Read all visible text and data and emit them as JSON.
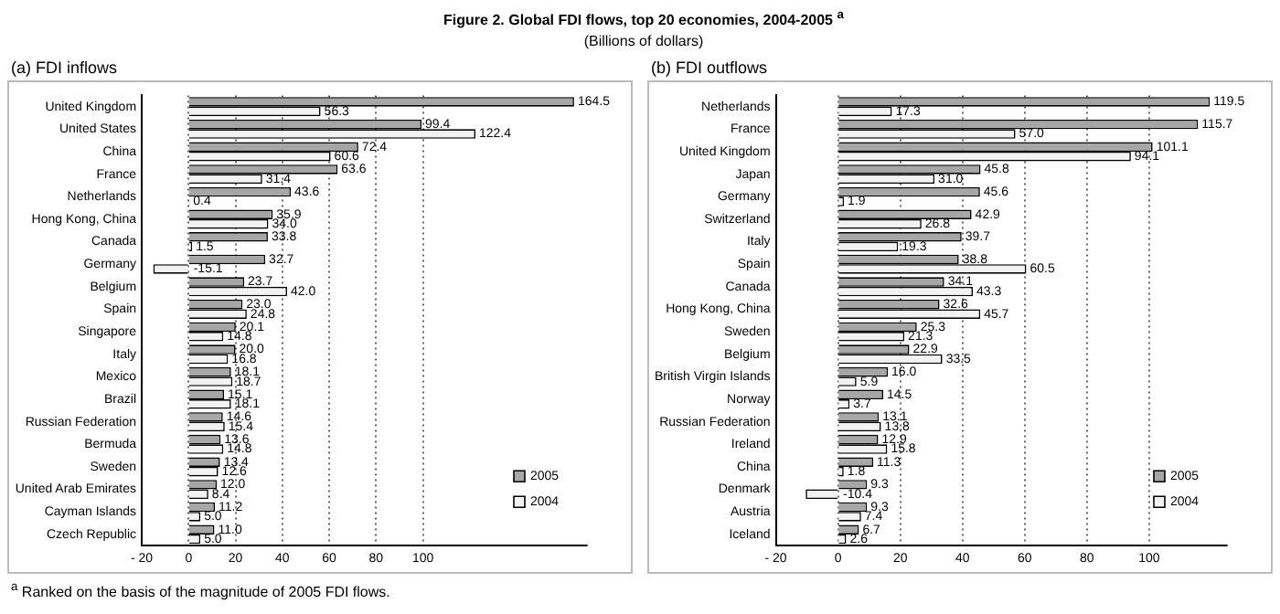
{
  "chart_data": [
    {
      "type": "bar",
      "orientation": "horizontal",
      "title": "(a) FDI inflows",
      "annotations": [
        "Figure 2.  Global FDI flows, top 20 economies, 2004-2005 $^{a}$",
        "(Billions of dollars)",
        "$^{a}$  Ranked on the basis of the magnitude of 2005 FDI flows."
      ],
      "categories": [
        "United Kingdom",
        "United States",
        "China",
        "France",
        "Netherlands",
        "Hong Kong, China",
        "Canada",
        "Germany",
        "Belgium",
        "Spain",
        "Singapore",
        "Italy",
        "Mexico",
        "Brazil",
        "Russian Federation",
        "Bermuda",
        "Sweden",
        "United Arab Emirates",
        "Cayman Islands",
        "Czech Republic"
      ],
      "series": [
        {
          "name": "2005",
          "color": "#a6a6a6",
          "values": [
            164.5,
            99.4,
            72.4,
            63.6,
            43.6,
            35.9,
            33.8,
            32.7,
            23.7,
            23.0,
            20.1,
            20.0,
            18.1,
            15.1,
            14.6,
            13.6,
            13.4,
            12.0,
            11.2,
            11.0
          ],
          "value_labels": [
            "164.5",
            "99.4",
            "72.4",
            "63.6",
            "43.6",
            "35.9",
            "33.8",
            "32.7",
            "23.7",
            "23.0",
            "20.1",
            "20.0",
            "18.1",
            "15.1",
            "14.6",
            "13.6",
            "13.4",
            "12.0",
            "11.2",
            "11.0"
          ]
        },
        {
          "name": "2004",
          "color": "#f2f2f2",
          "values": [
            56.3,
            122.4,
            60.6,
            31.4,
            0.4,
            34.0,
            1.5,
            -15.1,
            42.0,
            24.8,
            14.8,
            16.8,
            18.7,
            18.1,
            15.4,
            14.8,
            12.6,
            8.4,
            5.0,
            5.0
          ],
          "value_labels": [
            "56.3",
            "122.4",
            "60.6",
            "31.4",
            "0.4",
            "34.0",
            "1.5",
            "-15.1",
            "42.0",
            "24.8",
            "14.8",
            "16.8",
            "18.7",
            "18.1",
            "15.4",
            "14.8",
            "12.6",
            "8.4",
            "5.0",
            "5.0"
          ]
        }
      ],
      "xlim": [
        -20,
        170
      ],
      "xticks": [
        {
          "value": -20,
          "label": "- 20"
        },
        0,
        20,
        40,
        60,
        80,
        100
      ],
      "grid": "x",
      "legend": "bottom right"
    },
    {
      "type": "bar",
      "orientation": "horizontal",
      "title": "(b) FDI outflows",
      "categories": [
        "Netherlands",
        "France",
        "United Kingdom",
        "Japan",
        "Germany",
        "Switzerland",
        "Italy",
        "Spain",
        "Canada",
        "Hong Kong, China",
        "Sweden",
        "Belgium",
        "British Virgin Islands",
        "Norway",
        "Russian Federation",
        "Ireland",
        "China",
        "Denmark",
        "Austria",
        "Iceland"
      ],
      "series": [
        {
          "name": "2005",
          "color": "#a6a6a6",
          "values": [
            119.5,
            115.7,
            101.1,
            45.8,
            45.6,
            42.9,
            39.7,
            38.8,
            34.1,
            32.6,
            25.3,
            22.9,
            16.0,
            14.5,
            13.1,
            12.9,
            11.3,
            9.3,
            9.3,
            6.7
          ],
          "value_labels": [
            "119.5",
            "115.7",
            "101.1",
            "45.8",
            "45.6",
            "42.9",
            "39.7",
            "38.8",
            "34.1",
            "32.6",
            "25.3",
            "22.9",
            "16.0",
            "14.5",
            "13.1",
            "12.9",
            "11.3",
            "9.3",
            "9.3",
            "6.7"
          ]
        },
        {
          "name": "2004",
          "color": "#f2f2f2",
          "values": [
            17.3,
            57.0,
            94.1,
            31.0,
            1.9,
            26.8,
            19.3,
            60.5,
            43.3,
            45.7,
            21.3,
            33.5,
            5.9,
            3.7,
            13.8,
            15.8,
            1.8,
            -10.4,
            7.4,
            2.6
          ],
          "value_labels": [
            "17.3",
            "57.0",
            "94.1",
            "31.0",
            "1.9",
            "26.8",
            "19.3",
            "60.5",
            "43.3",
            "45.7",
            "21.3",
            "33.5",
            "5.9",
            "3.7",
            "13.8",
            "15.8",
            "1.8",
            "-10.4",
            "7.4",
            "2.6"
          ]
        }
      ],
      "xlim": [
        -20,
        125
      ],
      "xticks": [
        {
          "value": -20,
          "label": "- 20"
        },
        0,
        20,
        40,
        60,
        80,
        100
      ],
      "grid": "x",
      "legend": "bottom right"
    }
  ]
}
